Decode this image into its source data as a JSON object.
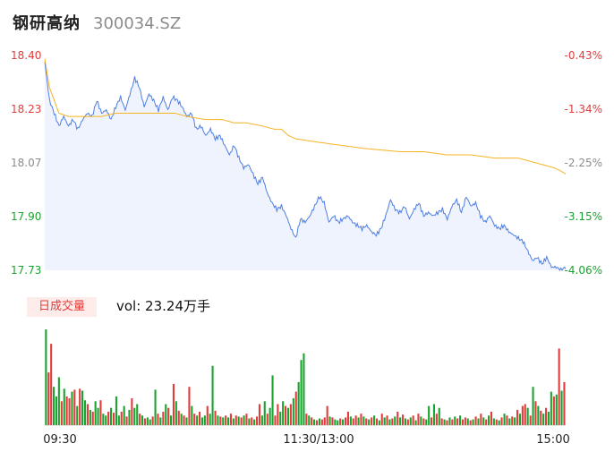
{
  "header": {
    "stock_name": "钢研高纳",
    "stock_code": "300034.SZ"
  },
  "volume_panel": {
    "badge": "日成交量",
    "vol_label": "vol: 23.24万手"
  },
  "colors": {
    "up": "#e23c3c",
    "down": "#1aa32f",
    "price_line": "#4f7ee3",
    "avg_line": "#f5b323",
    "area": "#eef3fd"
  },
  "chart_data": {
    "type": "line",
    "price_axis": {
      "ylim": [
        17.73,
        18.4
      ],
      "ticks": [
        "18.40",
        "18.23",
        "18.07",
        "17.90",
        "17.73"
      ]
    },
    "pct_axis": {
      "ticks": [
        "-0.43%",
        "-1.34%",
        "-2.25%",
        "-3.15%",
        "-4.06%"
      ]
    },
    "x_labels": [
      "09:30",
      "11:30/13:00",
      "15:00"
    ],
    "price_keypoints": [
      [
        0,
        18.38
      ],
      [
        2,
        18.26
      ],
      [
        4,
        18.22
      ],
      [
        6,
        18.18
      ],
      [
        8,
        18.21
      ],
      [
        10,
        18.18
      ],
      [
        12,
        18.2
      ],
      [
        14,
        18.17
      ],
      [
        16,
        18.2
      ],
      [
        18,
        18.22
      ],
      [
        20,
        18.21
      ],
      [
        22,
        18.26
      ],
      [
        24,
        18.22
      ],
      [
        26,
        18.23
      ],
      [
        28,
        18.2
      ],
      [
        30,
        18.24
      ],
      [
        32,
        18.27
      ],
      [
        34,
        18.23
      ],
      [
        36,
        18.28
      ],
      [
        38,
        18.33
      ],
      [
        40,
        18.3
      ],
      [
        42,
        18.24
      ],
      [
        44,
        18.28
      ],
      [
        46,
        18.26
      ],
      [
        48,
        18.23
      ],
      [
        50,
        18.27
      ],
      [
        52,
        18.23
      ],
      [
        54,
        18.27
      ],
      [
        56,
        18.26
      ],
      [
        58,
        18.24
      ],
      [
        60,
        18.21
      ],
      [
        62,
        18.22
      ],
      [
        64,
        18.17
      ],
      [
        66,
        18.18
      ],
      [
        68,
        18.15
      ],
      [
        70,
        18.17
      ],
      [
        72,
        18.14
      ],
      [
        74,
        18.15
      ],
      [
        76,
        18.12
      ],
      [
        78,
        18.09
      ],
      [
        80,
        18.12
      ],
      [
        82,
        18.08
      ],
      [
        84,
        18.05
      ],
      [
        86,
        18.06
      ],
      [
        88,
        18.03
      ],
      [
        90,
        18.0
      ],
      [
        92,
        18.02
      ],
      [
        94,
        17.97
      ],
      [
        96,
        17.94
      ],
      [
        98,
        17.92
      ],
      [
        100,
        17.93
      ],
      [
        102,
        17.9
      ],
      [
        104,
        17.86
      ],
      [
        106,
        17.83
      ],
      [
        108,
        17.89
      ],
      [
        110,
        17.88
      ],
      [
        112,
        17.9
      ],
      [
        114,
        17.93
      ],
      [
        116,
        17.96
      ],
      [
        118,
        17.94
      ],
      [
        120,
        17.88
      ],
      [
        122,
        17.9
      ],
      [
        124,
        17.88
      ],
      [
        126,
        17.89
      ],
      [
        128,
        17.9
      ],
      [
        130,
        17.88
      ],
      [
        132,
        17.87
      ],
      [
        134,
        17.86
      ],
      [
        136,
        17.87
      ],
      [
        138,
        17.85
      ],
      [
        140,
        17.84
      ],
      [
        142,
        17.86
      ],
      [
        144,
        17.9
      ],
      [
        146,
        17.95
      ],
      [
        148,
        17.92
      ],
      [
        150,
        17.91
      ],
      [
        152,
        17.93
      ],
      [
        154,
        17.89
      ],
      [
        156,
        17.92
      ],
      [
        158,
        17.94
      ],
      [
        160,
        17.9
      ],
      [
        162,
        17.91
      ],
      [
        164,
        17.9
      ],
      [
        166,
        17.91
      ],
      [
        168,
        17.92
      ],
      [
        170,
        17.89
      ],
      [
        172,
        17.93
      ],
      [
        174,
        17.95
      ],
      [
        176,
        17.91
      ],
      [
        178,
        17.96
      ],
      [
        180,
        17.93
      ],
      [
        182,
        17.94
      ],
      [
        184,
        17.9
      ],
      [
        186,
        17.88
      ],
      [
        188,
        17.9
      ],
      [
        190,
        17.87
      ],
      [
        192,
        17.86
      ],
      [
        194,
        17.87
      ],
      [
        196,
        17.85
      ],
      [
        198,
        17.84
      ],
      [
        200,
        17.83
      ],
      [
        202,
        17.82
      ],
      [
        204,
        17.79
      ],
      [
        206,
        17.76
      ],
      [
        208,
        17.77
      ],
      [
        210,
        17.75
      ],
      [
        212,
        17.77
      ],
      [
        214,
        17.74
      ],
      [
        216,
        17.74
      ],
      [
        218,
        17.73
      ],
      [
        220,
        17.74
      ]
    ],
    "avg_keypoints": [
      [
        0,
        18.39
      ],
      [
        2,
        18.3
      ],
      [
        4,
        18.26
      ],
      [
        6,
        18.22
      ],
      [
        10,
        18.21
      ],
      [
        14,
        18.21
      ],
      [
        20,
        18.21
      ],
      [
        24,
        18.21
      ],
      [
        30,
        18.22
      ],
      [
        40,
        18.22
      ],
      [
        50,
        18.22
      ],
      [
        55,
        18.22
      ],
      [
        60,
        18.21
      ],
      [
        68,
        18.2
      ],
      [
        75,
        18.2
      ],
      [
        80,
        18.19
      ],
      [
        85,
        18.19
      ],
      [
        92,
        18.18
      ],
      [
        97,
        18.17
      ],
      [
        100,
        18.17
      ],
      [
        103,
        18.15
      ],
      [
        106,
        18.14
      ],
      [
        115,
        18.13
      ],
      [
        125,
        18.12
      ],
      [
        135,
        18.11
      ],
      [
        150,
        18.1
      ],
      [
        160,
        18.1
      ],
      [
        170,
        18.09
      ],
      [
        180,
        18.09
      ],
      [
        190,
        18.08
      ],
      [
        200,
        18.08
      ],
      [
        205,
        18.07
      ],
      [
        210,
        18.06
      ],
      [
        215,
        18.05
      ],
      [
        218,
        18.04
      ],
      [
        220,
        18.03
      ]
    ],
    "volume_max": 100,
    "volume_bars": [
      [
        100,
        "down"
      ],
      [
        55,
        "up"
      ],
      [
        85,
        "up"
      ],
      [
        40,
        "down"
      ],
      [
        30,
        "down"
      ],
      [
        50,
        "down"
      ],
      [
        25,
        "up"
      ],
      [
        38,
        "down"
      ],
      [
        30,
        "up"
      ],
      [
        28,
        "up"
      ],
      [
        35,
        "down"
      ],
      [
        37,
        "up"
      ],
      [
        20,
        "down"
      ],
      [
        38,
        "up"
      ],
      [
        36,
        "down"
      ],
      [
        26,
        "down"
      ],
      [
        22,
        "up"
      ],
      [
        16,
        "down"
      ],
      [
        14,
        "up"
      ],
      [
        25,
        "down"
      ],
      [
        18,
        "down"
      ],
      [
        26,
        "up"
      ],
      [
        12,
        "down"
      ],
      [
        10,
        "down"
      ],
      [
        14,
        "up"
      ],
      [
        18,
        "down"
      ],
      [
        13,
        "up"
      ],
      [
        30,
        "down"
      ],
      [
        10,
        "down"
      ],
      [
        14,
        "up"
      ],
      [
        20,
        "down"
      ],
      [
        9,
        "up"
      ],
      [
        16,
        "down"
      ],
      [
        28,
        "up"
      ],
      [
        18,
        "down"
      ],
      [
        22,
        "down"
      ],
      [
        12,
        "up"
      ],
      [
        10,
        "down"
      ],
      [
        7,
        "up"
      ],
      [
        8,
        "down"
      ],
      [
        6,
        "down"
      ],
      [
        9,
        "up"
      ],
      [
        37,
        "down"
      ],
      [
        12,
        "up"
      ],
      [
        8,
        "down"
      ],
      [
        14,
        "up"
      ],
      [
        22,
        "down"
      ],
      [
        18,
        "up"
      ],
      [
        10,
        "down"
      ],
      [
        43,
        "up"
      ],
      [
        25,
        "down"
      ],
      [
        15,
        "up"
      ],
      [
        12,
        "down"
      ],
      [
        10,
        "up"
      ],
      [
        8,
        "down"
      ],
      [
        40,
        "up"
      ],
      [
        20,
        "down"
      ],
      [
        12,
        "up"
      ],
      [
        10,
        "down"
      ],
      [
        14,
        "up"
      ],
      [
        8,
        "down"
      ],
      [
        10,
        "down"
      ],
      [
        20,
        "up"
      ],
      [
        12,
        "down"
      ],
      [
        62,
        "down"
      ],
      [
        15,
        "up"
      ],
      [
        10,
        "down"
      ],
      [
        9,
        "up"
      ],
      [
        8,
        "down"
      ],
      [
        10,
        "up"
      ],
      [
        8,
        "down"
      ],
      [
        12,
        "up"
      ],
      [
        7,
        "down"
      ],
      [
        10,
        "up"
      ],
      [
        9,
        "down"
      ],
      [
        8,
        "up"
      ],
      [
        10,
        "down"
      ],
      [
        12,
        "up"
      ],
      [
        7,
        "down"
      ],
      [
        8,
        "up"
      ],
      [
        6,
        "down"
      ],
      [
        9,
        "up"
      ],
      [
        22,
        "up"
      ],
      [
        10,
        "down"
      ],
      [
        25,
        "down"
      ],
      [
        12,
        "up"
      ],
      [
        18,
        "down"
      ],
      [
        52,
        "down"
      ],
      [
        10,
        "up"
      ],
      [
        22,
        "up"
      ],
      [
        14,
        "down"
      ],
      [
        25,
        "down"
      ],
      [
        20,
        "up"
      ],
      [
        18,
        "down"
      ],
      [
        22,
        "up"
      ],
      [
        28,
        "down"
      ],
      [
        35,
        "up"
      ],
      [
        45,
        "down"
      ],
      [
        68,
        "down"
      ],
      [
        75,
        "down"
      ],
      [
        12,
        "up"
      ],
      [
        10,
        "down"
      ],
      [
        8,
        "up"
      ],
      [
        6,
        "down"
      ],
      [
        5,
        "up"
      ],
      [
        7,
        "down"
      ],
      [
        6,
        "up"
      ],
      [
        8,
        "up"
      ],
      [
        20,
        "up"
      ],
      [
        9,
        "down"
      ],
      [
        8,
        "up"
      ],
      [
        6,
        "down"
      ],
      [
        5,
        "down"
      ],
      [
        7,
        "up"
      ],
      [
        6,
        "down"
      ],
      [
        8,
        "up"
      ],
      [
        14,
        "up"
      ],
      [
        9,
        "down"
      ],
      [
        7,
        "up"
      ],
      [
        10,
        "up"
      ],
      [
        8,
        "down"
      ],
      [
        12,
        "up"
      ],
      [
        9,
        "down"
      ],
      [
        7,
        "up"
      ],
      [
        6,
        "down"
      ],
      [
        8,
        "up"
      ],
      [
        10,
        "down"
      ],
      [
        7,
        "up"
      ],
      [
        5,
        "down"
      ],
      [
        12,
        "up"
      ],
      [
        8,
        "down"
      ],
      [
        10,
        "up"
      ],
      [
        6,
        "down"
      ],
      [
        7,
        "up"
      ],
      [
        9,
        "down"
      ],
      [
        14,
        "up"
      ],
      [
        8,
        "down"
      ],
      [
        11,
        "up"
      ],
      [
        7,
        "down"
      ],
      [
        6,
        "up"
      ],
      [
        8,
        "down"
      ],
      [
        10,
        "up"
      ],
      [
        5,
        "down"
      ],
      [
        12,
        "up"
      ],
      [
        9,
        "down"
      ],
      [
        7,
        "up"
      ],
      [
        6,
        "down"
      ],
      [
        20,
        "down"
      ],
      [
        8,
        "up"
      ],
      [
        22,
        "down"
      ],
      [
        12,
        "up"
      ],
      [
        18,
        "down"
      ],
      [
        7,
        "up"
      ],
      [
        6,
        "down"
      ],
      [
        5,
        "up"
      ],
      [
        8,
        "down"
      ],
      [
        6,
        "up"
      ],
      [
        9,
        "down"
      ],
      [
        7,
        "up"
      ],
      [
        10,
        "down"
      ],
      [
        6,
        "up"
      ],
      [
        8,
        "up"
      ],
      [
        7,
        "down"
      ],
      [
        5,
        "up"
      ],
      [
        6,
        "down"
      ],
      [
        9,
        "up"
      ],
      [
        7,
        "down"
      ],
      [
        12,
        "up"
      ],
      [
        8,
        "down"
      ],
      [
        6,
        "up"
      ],
      [
        10,
        "down"
      ],
      [
        14,
        "up"
      ],
      [
        7,
        "down"
      ],
      [
        6,
        "up"
      ],
      [
        5,
        "down"
      ],
      [
        8,
        "up"
      ],
      [
        12,
        "down"
      ],
      [
        10,
        "up"
      ],
      [
        7,
        "down"
      ],
      [
        9,
        "up"
      ],
      [
        8,
        "down"
      ],
      [
        16,
        "up"
      ],
      [
        12,
        "down"
      ],
      [
        20,
        "up"
      ],
      [
        22,
        "up"
      ],
      [
        18,
        "down"
      ],
      [
        10,
        "up"
      ],
      [
        40,
        "down"
      ],
      [
        25,
        "up"
      ],
      [
        20,
        "down"
      ],
      [
        15,
        "up"
      ],
      [
        12,
        "down"
      ],
      [
        18,
        "up"
      ],
      [
        14,
        "down"
      ],
      [
        35,
        "down"
      ],
      [
        30,
        "up"
      ],
      [
        32,
        "down"
      ],
      [
        80,
        "up"
      ],
      [
        36,
        "down"
      ],
      [
        45,
        "up"
      ]
    ]
  }
}
